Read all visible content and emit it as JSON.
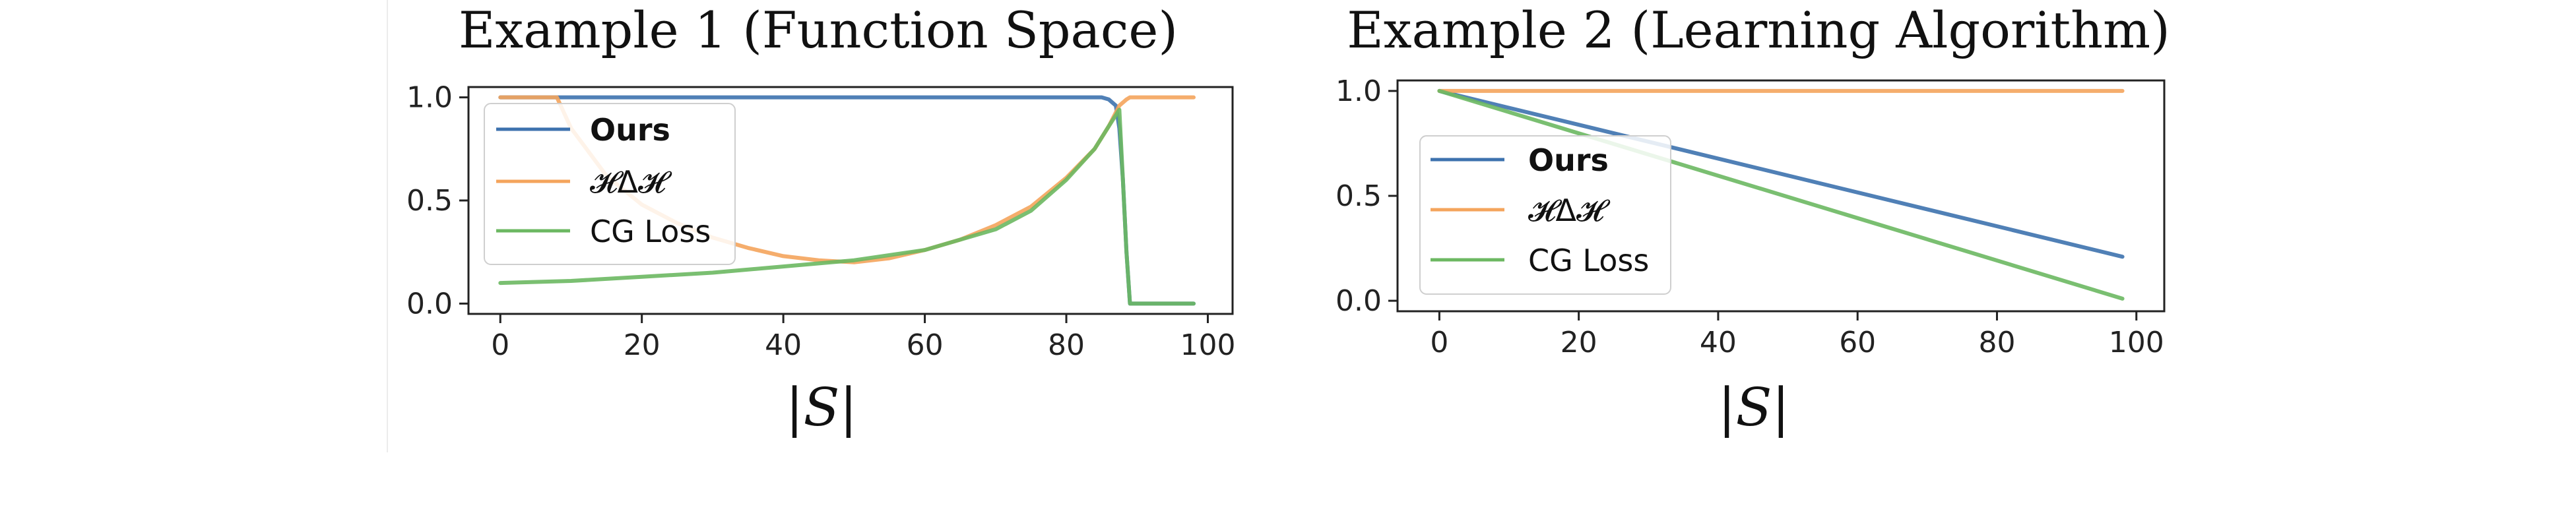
{
  "colors": {
    "ours": "#3d72ae",
    "hdh": "#f4a45c",
    "cg": "#6cb862"
  },
  "chart_data": [
    {
      "type": "line",
      "title": "Example 1 (Function Space)",
      "xlabel": "|S|",
      "ylabel": "",
      "xlim": [
        -4.5,
        103.5
      ],
      "ylim": [
        -0.05,
        1.05
      ],
      "xticks": [
        "0",
        "20",
        "40",
        "60",
        "80",
        "100"
      ],
      "yticks": [
        "0.0",
        "0.5",
        "1.0"
      ],
      "grid": false,
      "legend": "upper-left",
      "series": [
        {
          "name": "Ours",
          "color": "#3d72ae",
          "x": [
            0,
            10,
            20,
            30,
            40,
            50,
            60,
            70,
            80,
            85,
            86,
            87,
            87.5,
            88,
            88.5,
            89,
            90,
            95,
            98
          ],
          "y": [
            1.0,
            1.0,
            1.0,
            1.0,
            1.0,
            1.0,
            1.0,
            1.0,
            1.0,
            1.0,
            0.99,
            0.96,
            0.85,
            0.6,
            0.25,
            0.0,
            0.0,
            0.0,
            0.0
          ]
        },
        {
          "name": "𝓗Δ𝓗",
          "color": "#f4a45c",
          "x": [
            0,
            8,
            10,
            15,
            20,
            25,
            30,
            35,
            40,
            45,
            50,
            55,
            60,
            65,
            70,
            75,
            80,
            84,
            86,
            87.5,
            88.5,
            89,
            90,
            95,
            98
          ],
          "y": [
            1.0,
            1.0,
            0.85,
            0.62,
            0.48,
            0.39,
            0.32,
            0.27,
            0.23,
            0.21,
            0.2,
            0.22,
            0.26,
            0.31,
            0.38,
            0.47,
            0.61,
            0.75,
            0.86,
            0.96,
            0.99,
            1.0,
            1.0,
            1.0,
            1.0
          ]
        },
        {
          "name": "CG Loss",
          "color": "#6cb862",
          "x": [
            0,
            10,
            20,
            30,
            40,
            50,
            60,
            70,
            75,
            80,
            84,
            86,
            87.5,
            88,
            88.5,
            89,
            90,
            95,
            98
          ],
          "y": [
            0.1,
            0.11,
            0.13,
            0.15,
            0.18,
            0.21,
            0.26,
            0.36,
            0.45,
            0.6,
            0.75,
            0.86,
            0.94,
            0.6,
            0.25,
            0.0,
            0.0,
            0.0,
            0.0
          ]
        }
      ]
    },
    {
      "type": "line",
      "title": "Example 2 (Learning Algorithm)",
      "xlabel": "|S|",
      "ylabel": "",
      "xlim": [
        -6,
        104
      ],
      "ylim": [
        -0.05,
        1.05
      ],
      "xticks": [
        "0",
        "20",
        "40",
        "60",
        "80",
        "100"
      ],
      "yticks": [
        "0.0",
        "0.5",
        "1.0"
      ],
      "grid": false,
      "legend": "center-left",
      "series": [
        {
          "name": "Ours",
          "color": "#3d72ae",
          "x": [
            0,
            98
          ],
          "y": [
            1.0,
            0.21
          ]
        },
        {
          "name": "𝓗Δ𝓗",
          "color": "#f4a45c",
          "x": [
            0,
            98
          ],
          "y": [
            1.0,
            1.0
          ]
        },
        {
          "name": "CG Loss",
          "color": "#6cb862",
          "x": [
            0,
            98
          ],
          "y": [
            1.0,
            0.01
          ]
        }
      ]
    }
  ]
}
